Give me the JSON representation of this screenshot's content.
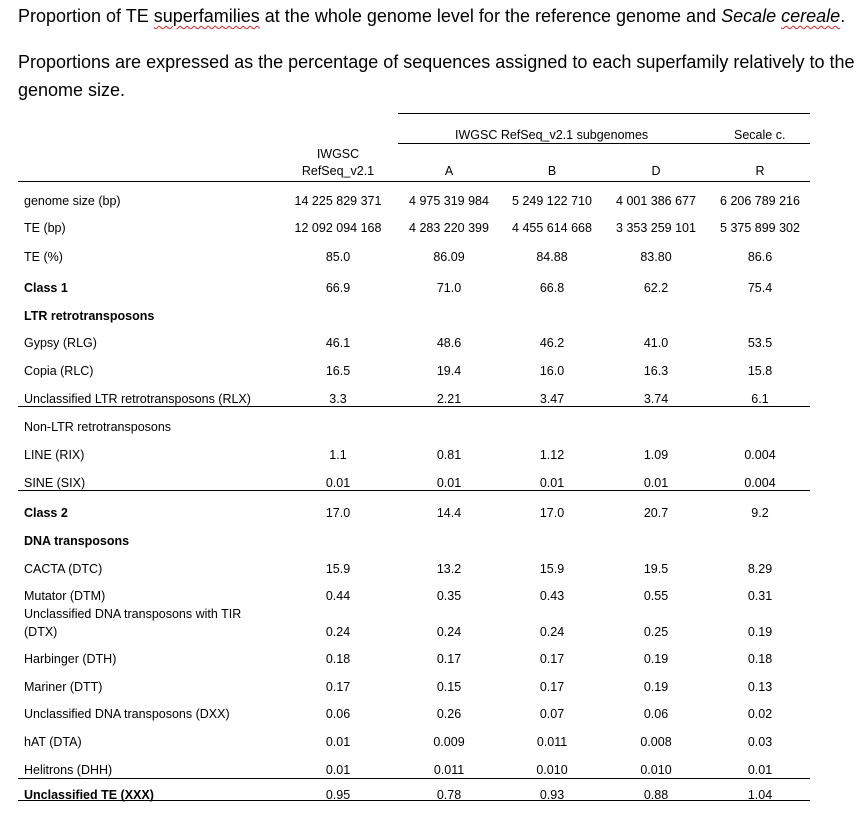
{
  "title": {
    "pre": "Proportion of TE ",
    "sq1": "superfamilies",
    "mid": " at the whole genome level for the reference genome and ",
    "ital": "Secale ",
    "sq2": "cereale",
    "end": "."
  },
  "paragraph": "Proportions are expressed as the percentage of sequences assigned to each superfamily relatively to the genome size.",
  "table": {
    "group_header": "IWGSC RefSeq_v2.1 subgenomes",
    "secale_header": "Secale c.",
    "col_iwgsc_line1": "IWGSC",
    "col_iwgsc_line2": "RefSeq_v2.1",
    "col_a": "A",
    "col_b": "B",
    "col_d": "D",
    "col_r": "R",
    "rows": [
      {
        "label": "genome size (bp)",
        "v": [
          "14 225 829 371",
          "4 975 319 984",
          "5 249 122 710",
          "4 001 386 677",
          "6 206 789 216"
        ]
      },
      {
        "label": "TE (bp)",
        "v": [
          "12 092 094 168",
          "4 283 220 399",
          "4 455 614 668",
          "3 353 259 101",
          "5 375 899 302"
        ]
      },
      {
        "label": "TE (%)",
        "v": [
          "85.0",
          "86.09",
          "84.88",
          "83.80",
          "86.6"
        ]
      },
      {
        "label": "Class 1",
        "v": [
          "66.9",
          "71.0",
          "66.8",
          "62.2",
          "75.4"
        ]
      },
      {
        "label": "LTR retrotransposons",
        "v": [
          "",
          "",
          "",
          "",
          ""
        ]
      },
      {
        "label": "Gypsy (RLG)",
        "v": [
          "46.1",
          "48.6",
          "46.2",
          "41.0",
          "53.5"
        ]
      },
      {
        "label": "Copia (RLC)",
        "v": [
          "16.5",
          "19.4",
          "16.0",
          "16.3",
          "15.8"
        ]
      },
      {
        "label": "Unclassified LTR retrotransposons (RLX)",
        "v": [
          "3.3",
          "2.21",
          "3.47",
          "3.74",
          "6.1"
        ]
      },
      {
        "label": "Non-LTR retrotransposons",
        "v": [
          "",
          "",
          "",
          "",
          ""
        ]
      },
      {
        "label": "LINE (RIX)",
        "v": [
          "1.1",
          "0.81",
          "1.12",
          "1.09",
          "0.004"
        ]
      },
      {
        "label": "SINE (SIX)",
        "v": [
          "0.01",
          "0.01",
          "0.01",
          "0.01",
          "0.004"
        ]
      },
      {
        "label": "Class 2",
        "v": [
          "17.0",
          "14.4",
          "17.0",
          "20.7",
          "9.2"
        ]
      },
      {
        "label": "DNA transposons",
        "v": [
          "",
          "",
          "",
          "",
          ""
        ]
      },
      {
        "label": "CACTA (DTC)",
        "v": [
          "15.9",
          "13.2",
          "15.9",
          "19.5",
          "8.29"
        ]
      },
      {
        "label": "Mutator (DTM)",
        "v": [
          "0.44",
          "0.35",
          "0.43",
          "0.55",
          "0.31"
        ]
      },
      {
        "label": "Unclassified DNA transposons with TIR",
        "v": [
          "",
          "",
          "",
          "",
          ""
        ]
      },
      {
        "label": "(DTX)",
        "v": [
          "0.24",
          "0.24",
          "0.24",
          "0.25",
          "0.19"
        ]
      },
      {
        "label": "Harbinger (DTH)",
        "v": [
          "0.18",
          "0.17",
          "0.17",
          "0.19",
          "0.18"
        ]
      },
      {
        "label": "Mariner (DTT)",
        "v": [
          "0.17",
          "0.15",
          "0.17",
          "0.19",
          "0.13"
        ]
      },
      {
        "label": "Unclassified DNA transposons (DXX)",
        "v": [
          "0.06",
          "0.26",
          "0.07",
          "0.06",
          "0.02"
        ]
      },
      {
        "label": "hAT (DTA)",
        "v": [
          "0.01",
          "0.009",
          "0.011",
          "0.008",
          "0.03"
        ]
      },
      {
        "label": "Helitrons (DHH)",
        "v": [
          "0.01",
          "0.011",
          "0.010",
          "0.010",
          "0.01"
        ]
      },
      {
        "label": "Unclassified TE (XXX)",
        "v": [
          "0.95",
          "0.78",
          "0.93",
          "0.88",
          "1.04"
        ]
      }
    ]
  }
}
